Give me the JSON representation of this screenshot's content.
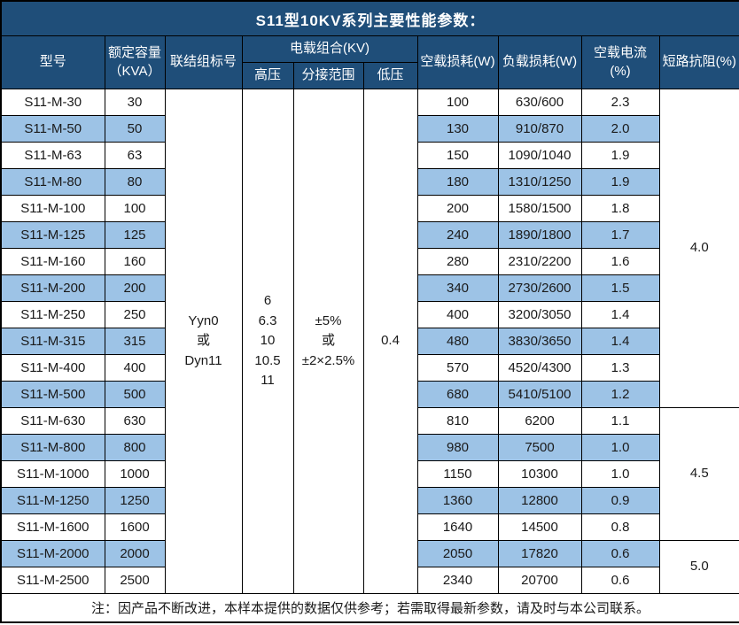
{
  "title": "S11型10KV系列主要性能参数：",
  "colors": {
    "header_bg": "#1F4E79",
    "stripe_bg": "#9DC3E6",
    "border": "#000000",
    "header_text": "#FFFFFF",
    "body_text": "#1A1A1A"
  },
  "header": {
    "model": "型号",
    "capacity": "额定容量\n（KVA）",
    "connection": "联结组标号",
    "voltage_group": "电载组合(KV)",
    "hv": "高压",
    "tap_range": "分接范围",
    "lv": "低压",
    "no_load_loss": "空载损耗(W)",
    "load_loss": "负载损耗(W)",
    "no_load_current": "空载电流(%)",
    "impedance": "短路抗阻(%)"
  },
  "merged": {
    "connection": "Yyn0\n或\nDyn11",
    "hv": "6\n6.3\n10\n10.5\n11",
    "tap_range": "±5%\n或\n±2×2.5%",
    "lv": "0.4"
  },
  "rows": [
    {
      "model": "S11-M-30",
      "kva": "30",
      "p0": "100",
      "pk": "630/600",
      "i0": "2.3"
    },
    {
      "model": "S11-M-50",
      "kva": "50",
      "p0": "130",
      "pk": "910/870",
      "i0": "2.0"
    },
    {
      "model": "S11-M-63",
      "kva": "63",
      "p0": "150",
      "pk": "1090/1040",
      "i0": "1.9"
    },
    {
      "model": "S11-M-80",
      "kva": "80",
      "p0": "180",
      "pk": "1310/1250",
      "i0": "1.9"
    },
    {
      "model": "S11-M-100",
      "kva": "100",
      "p0": "200",
      "pk": "1580/1500",
      "i0": "1.8"
    },
    {
      "model": "S11-M-125",
      "kva": "125",
      "p0": "240",
      "pk": "1890/1800",
      "i0": "1.7"
    },
    {
      "model": "S11-M-160",
      "kva": "160",
      "p0": "280",
      "pk": "2310/2200",
      "i0": "1.6"
    },
    {
      "model": "S11-M-200",
      "kva": "200",
      "p0": "340",
      "pk": "2730/2600",
      "i0": "1.5"
    },
    {
      "model": "S11-M-250",
      "kva": "250",
      "p0": "400",
      "pk": "3200/3050",
      "i0": "1.4"
    },
    {
      "model": "S11-M-315",
      "kva": "315",
      "p0": "480",
      "pk": "3830/3650",
      "i0": "1.4"
    },
    {
      "model": "S11-M-400",
      "kva": "400",
      "p0": "570",
      "pk": "4520/4300",
      "i0": "1.3"
    },
    {
      "model": "S11-M-500",
      "kva": "500",
      "p0": "680",
      "pk": "5410/5100",
      "i0": "1.2"
    },
    {
      "model": "S11-M-630",
      "kva": "630",
      "p0": "810",
      "pk": "6200",
      "i0": "1.1"
    },
    {
      "model": "S11-M-800",
      "kva": "800",
      "p0": "980",
      "pk": "7500",
      "i0": "1.0"
    },
    {
      "model": "S11-M-1000",
      "kva": "1000",
      "p0": "1150",
      "pk": "10300",
      "i0": "1.0"
    },
    {
      "model": "S11-M-1250",
      "kva": "1250",
      "p0": "1360",
      "pk": "12800",
      "i0": "0.9"
    },
    {
      "model": "S11-M-1600",
      "kva": "1600",
      "p0": "1640",
      "pk": "14500",
      "i0": "0.8"
    },
    {
      "model": "S11-M-2000",
      "kva": "2000",
      "p0": "2050",
      "pk": "17820",
      "i0": "0.6"
    },
    {
      "model": "S11-M-2500",
      "kva": "2500",
      "p0": "2340",
      "pk": "20700",
      "i0": "0.6"
    }
  ],
  "impedance_groups": [
    {
      "value": "4.0",
      "span": 12
    },
    {
      "value": "4.5",
      "span": 5
    },
    {
      "value": "5.0",
      "span": 2
    }
  ],
  "footer_note": "注：因产品不断改进，本样本提供的数据仅供参考；若需取得最新参数，请及时与本公司联系。"
}
